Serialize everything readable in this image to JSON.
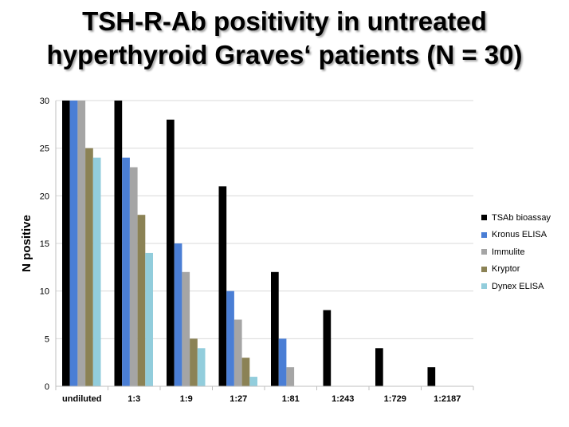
{
  "title": {
    "line1": "TSH-R-Ab positivity in untreated",
    "line2": "hyperthyroid Graves‘ patients (N = 30)"
  },
  "chart_data": {
    "type": "bar",
    "categories": [
      "undiluted",
      "1:3",
      "1:9",
      "1:27",
      "1:81",
      "1:243",
      "1:729",
      "1:2187"
    ],
    "series": [
      {
        "name": "TSAb bioassay",
        "color": "#000000",
        "values": [
          30,
          30,
          28,
          21,
          12,
          8,
          4,
          2
        ]
      },
      {
        "name": "Kronus ELISA",
        "color": "#4a7ed5",
        "values": [
          30,
          24,
          15,
          10,
          5,
          0,
          0,
          0
        ]
      },
      {
        "name": "Immulite",
        "color": "#a5a5a5",
        "values": [
          30,
          23,
          12,
          7,
          2,
          0,
          0,
          0
        ]
      },
      {
        "name": "Kryptor",
        "color": "#8b8255",
        "values": [
          25,
          18,
          5,
          3,
          0,
          0,
          0,
          0
        ]
      },
      {
        "name": "Dynex ELISA",
        "color": "#92cddc",
        "values": [
          24,
          14,
          4,
          1,
          0,
          0,
          0,
          0
        ]
      }
    ],
    "ylabel": "N positive",
    "ylim": [
      0,
      30
    ],
    "yticks": [
      0,
      5,
      10,
      15,
      20,
      25,
      30
    ],
    "grid": true,
    "legend": "right"
  }
}
